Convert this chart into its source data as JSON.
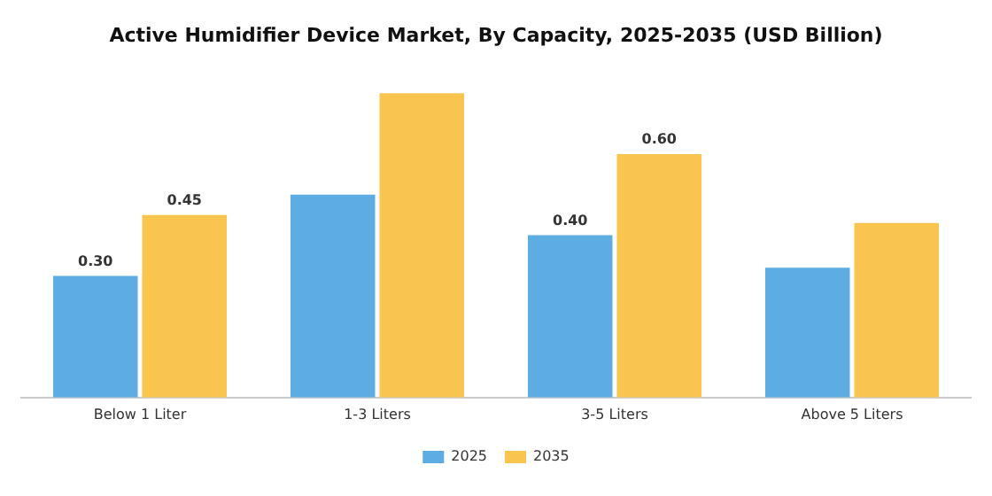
{
  "chart_data": {
    "type": "bar",
    "title": "Active Humidifier Device Market, By Capacity, 2025-2035 (USD Billion)",
    "categories": [
      "Below 1 Liter",
      "1-3 Liters",
      "3-5 Liters",
      "Above 5 Liters"
    ],
    "series": [
      {
        "name": "2025",
        "color": "#5dade2",
        "values": [
          0.3,
          0.5,
          0.4,
          0.32
        ],
        "value_labels": [
          "0.30",
          null,
          "0.40",
          null
        ]
      },
      {
        "name": "2035",
        "color": "#f9c54e",
        "values": [
          0.45,
          0.75,
          0.6,
          0.43
        ],
        "value_labels": [
          "0.45",
          null,
          "0.60",
          null
        ]
      }
    ],
    "legend": "bottom",
    "grid": false
  }
}
